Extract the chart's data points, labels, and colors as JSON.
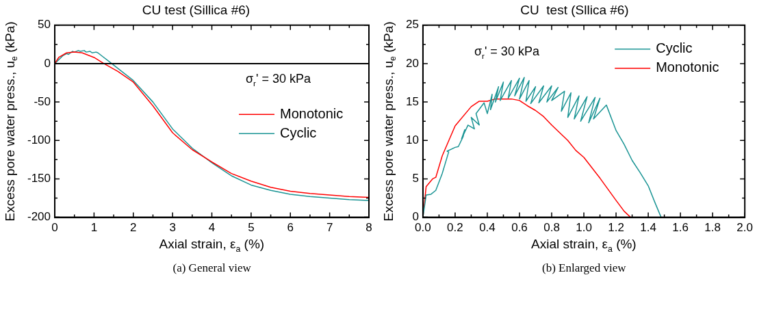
{
  "chart_data": [
    {
      "type": "line",
      "title": "CU test (Sillica #6)",
      "xlabel": "Axial strain, ε$_{a}$ (%)",
      "ylabel": "Excess pore water press., u$_{e}$ (kPa)",
      "xlim": [
        0,
        8
      ],
      "xticks": [
        0,
        {
          "value": 0.5,
          "label": null
        },
        1,
        {
          "value": 1.5,
          "label": null
        },
        2,
        {
          "value": 2.5,
          "label": null
        },
        3,
        {
          "value": 3.5,
          "label": null
        },
        4,
        {
          "value": 4.5,
          "label": null
        },
        5,
        {
          "value": 5.5,
          "label": null
        },
        6,
        {
          "value": 6.5,
          "label": null
        },
        7,
        {
          "value": 7.5,
          "label": null
        },
        8
      ],
      "ylim": [
        -200,
        50
      ],
      "yticks": [
        -200,
        {
          "value": -175,
          "label": null
        },
        -150,
        {
          "value": -125,
          "label": null
        },
        -100,
        {
          "value": -75,
          "label": null
        },
        -50,
        {
          "value": -25,
          "label": null
        },
        0,
        {
          "value": 25,
          "label": null
        },
        50
      ],
      "grid": false,
      "legend": "right",
      "marker": "none",
      "line_style": "solid",
      "ref_lines": [
        {
          "axis": "y",
          "value": 0,
          "color": "#000000"
        }
      ],
      "annotations": [
        "σ$_{r}$' = 30 kPa",
        "(a) General view"
      ],
      "series": [
        {
          "name": "Monotonic",
          "color": "#ff0000",
          "x": [
            0,
            0.1,
            0.3,
            0.5,
            0.7,
            1.0,
            1.25,
            1.6,
            2.0,
            2.5,
            3.0,
            3.5,
            4.0,
            4.5,
            5.0,
            5.5,
            6.0,
            6.5,
            7.0,
            7.5,
            8.0
          ],
          "values": [
            0,
            8,
            14,
            15,
            14,
            8,
            0,
            -10,
            -24,
            -55,
            -90,
            -112,
            -128,
            -143,
            -153,
            -161,
            -166,
            -169,
            -171,
            -173,
            -174
          ]
        },
        {
          "name": "Cyclic",
          "color": "#1a9494",
          "x": [
            0,
            0.1,
            0.2,
            0.3,
            0.35,
            0.45,
            0.5,
            0.6,
            0.65,
            0.75,
            0.8,
            0.9,
            0.95,
            1.05,
            1.1,
            1.2,
            1.45,
            1.7,
            2.0,
            2.5,
            3.0,
            3.5,
            4.0,
            4.5,
            5.0,
            5.5,
            6.0,
            6.5,
            7.0,
            7.5,
            8.0
          ],
          "values": [
            0,
            5,
            10,
            13,
            12,
            16,
            15,
            17,
            16,
            17,
            15,
            16,
            14,
            15,
            14,
            10,
            0,
            -10,
            -22,
            -50,
            -85,
            -110,
            -129,
            -146,
            -158,
            -165,
            -170,
            -173,
            -175,
            -177,
            -178
          ]
        }
      ]
    },
    {
      "type": "line",
      "title": "CU  test (Sllica #6)",
      "xlabel": "Axial strain, ε$_{a}$ (%)",
      "ylabel": "Excess pore water press., u$_{e}$ (kPa)",
      "xlim": [
        0,
        2
      ],
      "xticks": [
        {
          "value": 0,
          "label": "0.0"
        },
        {
          "value": 0.1,
          "label": null
        },
        0.2,
        {
          "value": 0.3,
          "label": null
        },
        0.4,
        {
          "value": 0.5,
          "label": null
        },
        0.6,
        {
          "value": 0.7,
          "label": null
        },
        0.8,
        {
          "value": 0.9,
          "label": null
        },
        {
          "value": 1,
          "label": "1.0"
        },
        {
          "value": 1.1,
          "label": null
        },
        1.2,
        {
          "value": 1.3,
          "label": null
        },
        1.4,
        {
          "value": 1.5,
          "label": null
        },
        1.6,
        {
          "value": 1.7,
          "label": null
        },
        1.8,
        {
          "value": 1.9,
          "label": null
        },
        {
          "value": 2,
          "label": "2.0"
        }
      ],
      "ylim": [
        0,
        25
      ],
      "yticks": [
        0,
        {
          "value": 2.5,
          "label": null
        },
        5,
        {
          "value": 7.5,
          "label": null
        },
        10,
        {
          "value": 12.5,
          "label": null
        },
        15,
        {
          "value": 17.5,
          "label": null
        },
        20,
        {
          "value": 22.5,
          "label": null
        },
        25
      ],
      "grid": false,
      "legend": "top right",
      "marker": "none",
      "line_style": "solid",
      "annotations": [
        "σ$_{r}$' = 30 kPa",
        "(b) Enlarged view"
      ],
      "series": [
        {
          "name": "Cyclic",
          "color": "#1a9494",
          "x": [
            0,
            0.02,
            0.05,
            0.08,
            0.12,
            0.16,
            0.15,
            0.2,
            0.22,
            0.25,
            0.26,
            0.24,
            0.28,
            0.32,
            0.3,
            0.35,
            0.33,
            0.38,
            0.4,
            0.43,
            0.42,
            0.47,
            0.45,
            0.5,
            0.48,
            0.55,
            0.53,
            0.6,
            0.57,
            0.63,
            0.6,
            0.66,
            0.64,
            0.7,
            0.67,
            0.75,
            0.72,
            0.8,
            0.77,
            0.84,
            0.8,
            0.88,
            0.86,
            0.92,
            0.9,
            0.97,
            0.94,
            1.02,
            0.98,
            1.07,
            1.03,
            1.1,
            1.06,
            1.14,
            1.2,
            1.25,
            1.3,
            1.35,
            1.4,
            1.44,
            1.48
          ],
          "values": [
            0,
            2.9,
            3.0,
            3.5,
            5.7,
            8.5,
            8.6,
            9.1,
            9.2,
            10.5,
            11.4,
            10.2,
            12,
            11.5,
            13,
            12,
            13.5,
            14.9,
            13.5,
            16,
            14,
            17,
            15,
            17.6,
            15.2,
            17.8,
            15.5,
            18.1,
            15.8,
            18.2,
            15.4,
            17.8,
            15.1,
            17,
            14.8,
            17.1,
            14.9,
            17.1,
            15,
            16.9,
            15.2,
            16.4,
            13.8,
            16.2,
            13,
            15.8,
            12.8,
            15.7,
            12.5,
            15.6,
            12.3,
            15.5,
            12.8,
            14.6,
            11.3,
            9.5,
            7.4,
            5.8,
            4.1,
            2,
            0
          ]
        },
        {
          "name": "Monotonic",
          "color": "#ff0000",
          "x": [
            0,
            0.02,
            0.06,
            0.08,
            0.12,
            0.2,
            0.3,
            0.35,
            0.4,
            0.45,
            0.55,
            0.6,
            0.65,
            0.7,
            0.75,
            0.8,
            0.9,
            0.95,
            1.0,
            1.1,
            1.2,
            1.25,
            1.29
          ],
          "values": [
            0,
            4,
            5,
            5.2,
            8,
            11.9,
            14.4,
            15.1,
            15.1,
            15.4,
            15.4,
            15.2,
            14.5,
            13.9,
            13.1,
            12,
            10,
            8.7,
            7.8,
            5.1,
            2.2,
            0.8,
            0
          ]
        }
      ]
    }
  ]
}
